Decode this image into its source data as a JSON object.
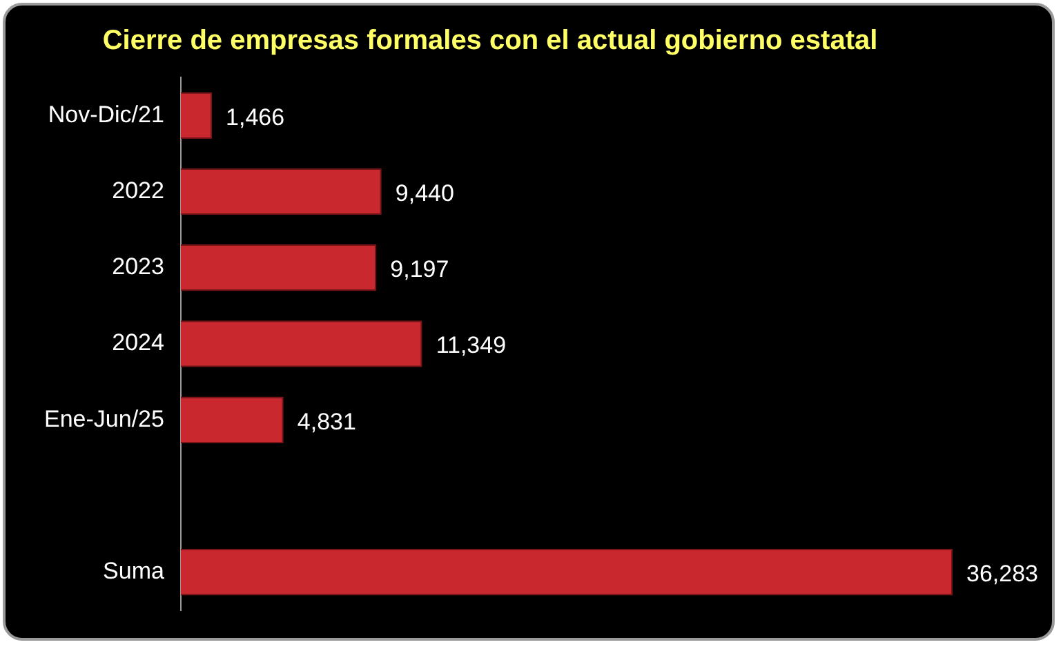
{
  "chart_data": {
    "type": "bar",
    "orientation": "horizontal",
    "title": "Cierre de empresas formales con el actual gobierno estatal",
    "categories": [
      "Nov-Dic/21",
      "2022",
      "2023",
      "2024",
      "Ene-Jun/25",
      null,
      "Suma"
    ],
    "values": [
      1466,
      9440,
      9197,
      11349,
      4831,
      null,
      36283
    ],
    "value_labels": [
      "1,466",
      "9,440",
      "9,197",
      "11,349",
      "4,831",
      null,
      "36,283"
    ],
    "color": "#c8282e",
    "legend": false
  }
}
